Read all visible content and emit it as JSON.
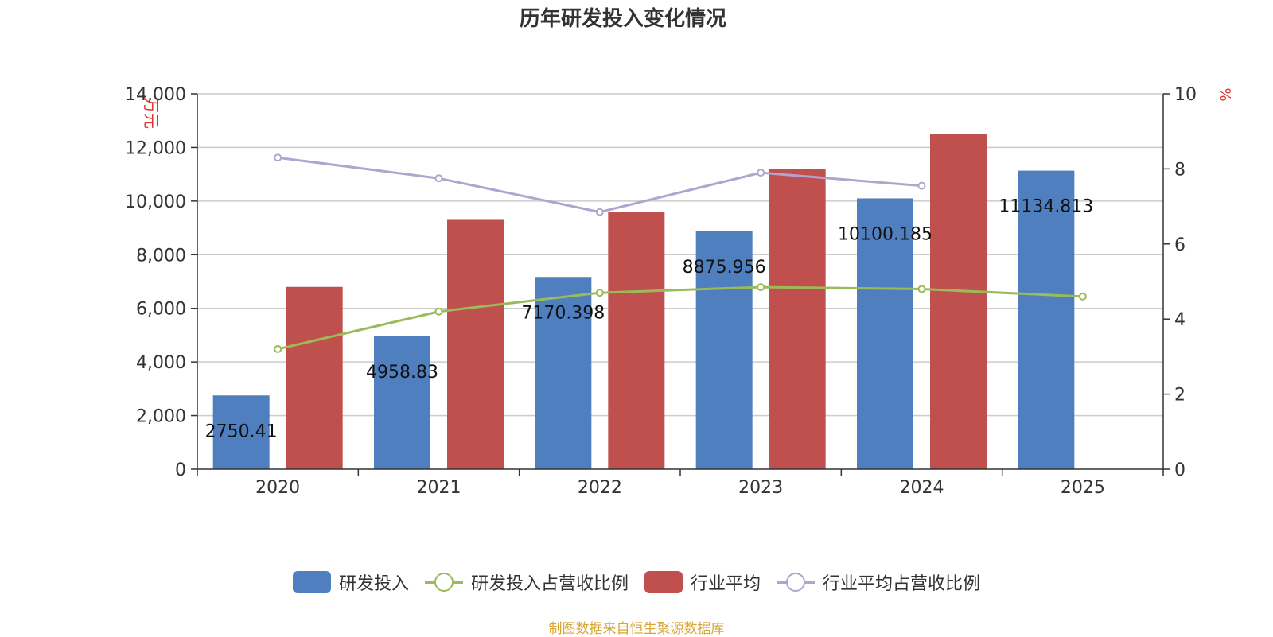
{
  "chart_data": {
    "type": "bar",
    "title": "历年研发投入变化情况",
    "y_left_label": "万元",
    "y_right_label": "%",
    "categories": [
      "2020",
      "2021",
      "2022",
      "2023",
      "2024",
      "2025"
    ],
    "ylim_left": [
      0,
      14000
    ],
    "yticks_left": [
      "0",
      "2,000",
      "4,000",
      "6,000",
      "8,000",
      "10,000",
      "12,000",
      "14,000"
    ],
    "ylim_right": [
      0,
      10
    ],
    "yticks_right": [
      "0",
      "2",
      "4",
      "6",
      "8",
      "10"
    ],
    "grid": true,
    "legend_position": "bottom",
    "series": [
      {
        "name": "研发投入",
        "type": "bar",
        "axis": "left",
        "color": "#4f7fbf",
        "values": [
          2750.41,
          4958.83,
          7170.398,
          8875.956,
          10100.185,
          11134.813
        ],
        "labels": [
          "2750.41",
          "4958.83",
          "7170.398",
          "8875.956",
          "10100.185",
          "11134.813"
        ]
      },
      {
        "name": "研发投入占营收比例",
        "type": "line",
        "axis": "right",
        "color": "#9bbb59",
        "values": [
          3.2,
          4.2,
          4.7,
          4.85,
          4.8,
          4.6
        ]
      },
      {
        "name": "行业平均",
        "type": "bar",
        "axis": "left",
        "color": "#c0504d",
        "values": [
          6800,
          9300,
          9580,
          11200,
          12500,
          null
        ]
      },
      {
        "name": "行业平均占营收比例",
        "type": "line",
        "axis": "right",
        "color": "#b2a3cf",
        "values": [
          8.3,
          7.75,
          6.85,
          7.9,
          7.55,
          null
        ]
      }
    ]
  },
  "legend": [
    {
      "label": "研发投入",
      "kind": "bar",
      "color": "#4f7fbf"
    },
    {
      "label": "研发投入占营收比例",
      "kind": "line",
      "color": "#9bbb59"
    },
    {
      "label": "行业平均",
      "kind": "bar",
      "color": "#c0504d"
    },
    {
      "label": "行业平均占营收比例",
      "kind": "line",
      "color": "#b2a3cf"
    }
  ],
  "source": "制图数据来自恒生聚源数据库"
}
